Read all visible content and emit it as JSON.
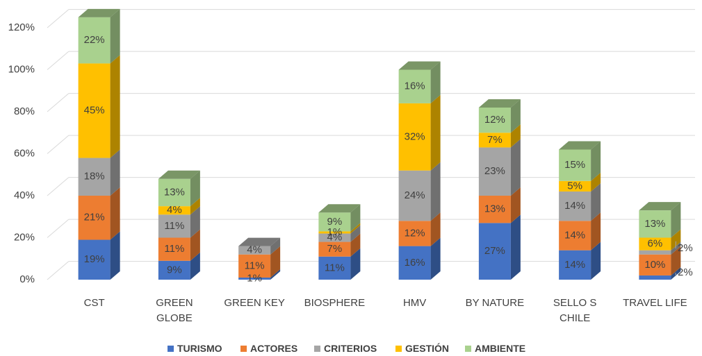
{
  "chart_data": {
    "type": "bar3d_stacked",
    "categories": [
      "CST",
      "GREEN GLOBE",
      "GREEN KEY",
      "BIOSPHERE",
      "HMV",
      "BY NATURE",
      "SELLO S CHILE",
      "TRAVEL LIFE"
    ],
    "series": [
      {
        "name": "TURISMO",
        "color": "#4472c4",
        "values": [
          19,
          9,
          1,
          11,
          16,
          27,
          14,
          2
        ],
        "value_labels": [
          "19%",
          "9%",
          "1%",
          "11%",
          "16%",
          "27%",
          "14%",
          "2%"
        ]
      },
      {
        "name": "ACTORES",
        "color": "#ed7d31",
        "values": [
          21,
          11,
          11,
          7,
          12,
          13,
          14,
          10
        ],
        "value_labels": [
          "21%",
          "11%",
          "11%",
          "7%",
          "12%",
          "13%",
          "14%",
          "10%"
        ]
      },
      {
        "name": "CRITERIOS",
        "color": "#a5a5a5",
        "values": [
          18,
          11,
          4,
          4,
          24,
          23,
          14,
          2
        ],
        "value_labels": [
          "18%",
          "11%",
          "4%",
          "4%",
          "24%",
          "23%",
          "14%",
          "2%"
        ]
      },
      {
        "name": "GESTIÓN",
        "color": "#ffc000",
        "values": [
          45,
          4,
          null,
          1,
          32,
          7,
          5,
          6
        ],
        "value_labels": [
          "45%",
          "4%",
          null,
          "1%",
          "32%",
          "7%",
          "5%",
          "6%"
        ]
      },
      {
        "name": "AMBIENTE",
        "color": "#a9d18e",
        "values": [
          22,
          13,
          null,
          9,
          16,
          12,
          15,
          13
        ],
        "value_labels": [
          "22%",
          "13%",
          null,
          "9%",
          "16%",
          "12%",
          "15%",
          "13%"
        ]
      }
    ],
    "ylim": [
      0,
      120
    ],
    "yticks": [
      {
        "value": 0,
        "label": "0%"
      },
      {
        "value": 20,
        "label": "20%"
      },
      {
        "value": 40,
        "label": "40%"
      },
      {
        "value": 60,
        "label": "60%"
      },
      {
        "value": 80,
        "label": "80%"
      },
      {
        "value": 100,
        "label": "100%"
      },
      {
        "value": 120,
        "label": "120%"
      }
    ],
    "grid": true,
    "legend": "bottom"
  }
}
